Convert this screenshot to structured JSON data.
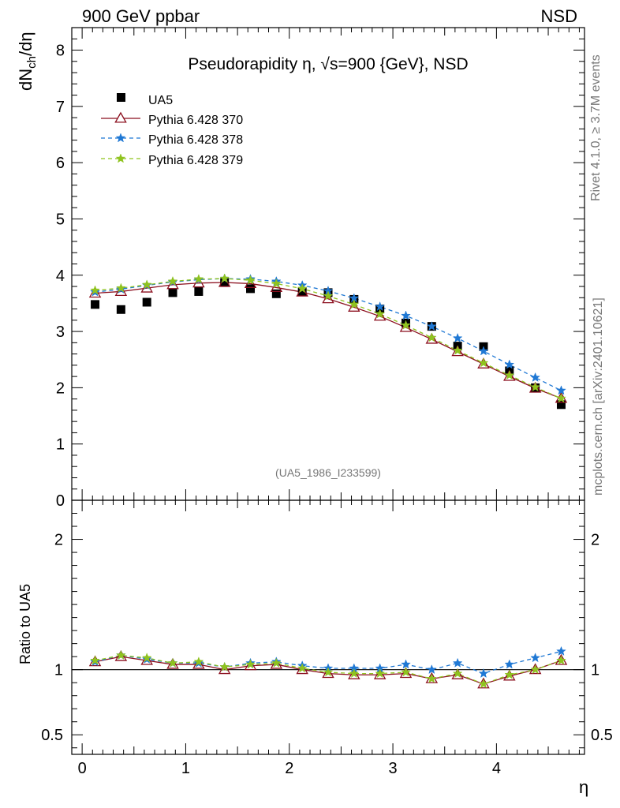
{
  "header": {
    "left": "900 GeV ppbar",
    "right": "NSD"
  },
  "side": {
    "rivet": "Rivet 4.1.0, ≥ 3.7M events",
    "mcplots": "mcplots.cern.ch [arXiv:2401.10621]"
  },
  "colors": {
    "ua5": "#000000",
    "p370": "#8b0f1e",
    "p378": "#1f78d4",
    "p379": "#8fc31f"
  },
  "chart_data": {
    "type": "scatter",
    "title": "Pseudorapidity η, √s=900 {GeV}, NSD",
    "xlabel": "η",
    "ylabel": "dN_ch/dη",
    "ratio_ylabel": "Ratio to UA5",
    "watermark": "(UA5_1986_I233599)",
    "xlim": [
      -0.1,
      4.85
    ],
    "ylim": [
      0,
      8.4
    ],
    "ratio_ylim": [
      0.35,
      2.3
    ],
    "x_ticks": [
      "0",
      "1",
      "2",
      "3",
      "4"
    ],
    "y_ticks": [
      "0",
      "1",
      "2",
      "3",
      "4",
      "5",
      "6",
      "7",
      "8"
    ],
    "ratio_ticks": [
      "0.5",
      "1",
      "2"
    ],
    "x": [
      0.125,
      0.375,
      0.625,
      0.875,
      1.125,
      1.375,
      1.625,
      1.875,
      2.125,
      2.375,
      2.625,
      2.875,
      3.125,
      3.375,
      3.625,
      3.875,
      4.125,
      4.375,
      4.625
    ],
    "series": [
      {
        "name": "UA5",
        "marker": "square",
        "values": [
          3.48,
          3.39,
          3.52,
          3.69,
          3.71,
          3.87,
          3.76,
          3.67,
          3.71,
          3.69,
          3.57,
          3.4,
          3.15,
          3.09,
          2.74,
          2.73,
          2.3,
          2.0,
          1.7
        ]
      },
      {
        "name": "Pythia 6.428 370",
        "marker": "triangle",
        "line": "solid",
        "values": [
          3.68,
          3.71,
          3.77,
          3.83,
          3.86,
          3.87,
          3.85,
          3.78,
          3.7,
          3.58,
          3.43,
          3.27,
          3.07,
          2.86,
          2.64,
          2.42,
          2.2,
          1.99,
          1.81
        ]
      },
      {
        "name": "Pythia 6.428 378",
        "marker": "star",
        "line": "dashed",
        "values": [
          3.7,
          3.75,
          3.82,
          3.88,
          3.92,
          3.94,
          3.93,
          3.89,
          3.82,
          3.72,
          3.59,
          3.44,
          3.28,
          3.09,
          2.88,
          2.65,
          2.41,
          2.18,
          1.95
        ]
      },
      {
        "name": "Pythia 6.428 379",
        "marker": "star",
        "line": "dashed",
        "values": [
          3.73,
          3.77,
          3.83,
          3.89,
          3.93,
          3.94,
          3.91,
          3.85,
          3.76,
          3.63,
          3.48,
          3.31,
          3.11,
          2.89,
          2.66,
          2.44,
          2.22,
          2.01,
          1.81
        ]
      }
    ],
    "ratio_series": [
      {
        "name": "Pythia 6.428 370",
        "values": [
          1.06,
          1.1,
          1.07,
          1.04,
          1.04,
          1.0,
          1.03,
          1.04,
          1.0,
          0.97,
          0.96,
          0.96,
          0.97,
          0.93,
          0.96,
          0.89,
          0.95,
          1.0,
          1.07
        ]
      },
      {
        "name": "Pythia 6.428 378",
        "values": [
          1.06,
          1.11,
          1.08,
          1.05,
          1.05,
          1.02,
          1.05,
          1.06,
          1.03,
          1.01,
          1.01,
          1.01,
          1.04,
          1.0,
          1.05,
          0.97,
          1.04,
          1.09,
          1.14
        ]
      },
      {
        "name": "Pythia 6.428 379",
        "values": [
          1.07,
          1.11,
          1.09,
          1.05,
          1.06,
          1.02,
          1.04,
          1.05,
          1.01,
          0.98,
          0.97,
          0.97,
          0.98,
          0.93,
          0.97,
          0.89,
          0.96,
          1.0,
          1.07
        ]
      }
    ]
  }
}
